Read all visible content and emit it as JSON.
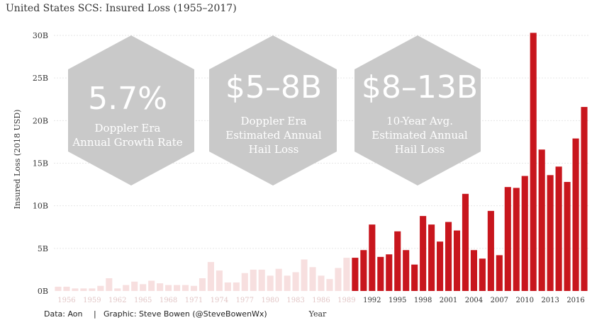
{
  "chart_data": {
    "type": "bar",
    "title": "United States SCS: Insured Loss (1955–2017)",
    "xlabel": "Year",
    "ylabel": "Insured Loss (2018 USD)",
    "ylim": [
      0,
      30
    ],
    "yticks": [
      "0B",
      "5B",
      "10B",
      "15B",
      "20B",
      "25B",
      "30B"
    ],
    "grid": true,
    "years": [
      1955,
      1956,
      1957,
      1958,
      1959,
      1960,
      1961,
      1962,
      1963,
      1964,
      1965,
      1966,
      1967,
      1968,
      1969,
      1970,
      1971,
      1972,
      1973,
      1974,
      1975,
      1976,
      1977,
      1978,
      1979,
      1980,
      1981,
      1982,
      1983,
      1984,
      1985,
      1986,
      1987,
      1988,
      1989,
      1990,
      1991,
      1992,
      1993,
      1994,
      1995,
      1996,
      1997,
      1998,
      1999,
      2000,
      2001,
      2002,
      2003,
      2004,
      2005,
      2006,
      2007,
      2008,
      2009,
      2010,
      2011,
      2012,
      2013,
      2014,
      2015,
      2016,
      2017
    ],
    "values": [
      0.5,
      0.5,
      0.3,
      0.3,
      0.3,
      0.6,
      1.5,
      0.3,
      0.7,
      1.1,
      0.8,
      1.2,
      0.9,
      0.7,
      0.7,
      0.7,
      0.6,
      1.5,
      3.4,
      2.4,
      1.0,
      1.0,
      2.1,
      2.5,
      2.5,
      1.8,
      2.6,
      1.8,
      2.2,
      3.7,
      2.8,
      1.8,
      1.4,
      2.7,
      3.9,
      3.9,
      4.8,
      7.8,
      4.0,
      4.3,
      7.0,
      4.8,
      3.1,
      8.8,
      7.8,
      5.8,
      8.1,
      7.1,
      11.4,
      4.8,
      3.8,
      9.4,
      4.2,
      12.2,
      12.1,
      13.5,
      30.3,
      16.6,
      13.6,
      14.6,
      12.8,
      17.9,
      21.6
    ],
    "x_tick_labels": [
      "1956",
      "1959",
      "1962",
      "1965",
      "1968",
      "1971",
      "1974",
      "1977",
      "1980",
      "1983",
      "1986",
      "1989",
      "1992",
      "1995",
      "1998",
      "2001",
      "2004",
      "2007",
      "2010",
      "2013",
      "2016"
    ],
    "doppler_era_start": 1990,
    "colors": {
      "pre_doppler": "#f7dfdf",
      "doppler": "#c8161d",
      "hexagon": "#c9c9c9"
    }
  },
  "callouts": [
    {
      "big": "5.7%",
      "line1": "Doppler Era",
      "line2": "Annual Growth Rate",
      "line3": ""
    },
    {
      "big": "$5–8B",
      "line1": "Doppler Era",
      "line2": "Estimated Annual",
      "line3": "Hail Loss"
    },
    {
      "big": "$8–13B",
      "line1": "10-Year Avg.",
      "line2": "Estimated Annual",
      "line3": "Hail Loss"
    }
  ],
  "footer": {
    "source": "Data: Aon",
    "separator": "|",
    "credit": "Graphic: Steve Bowen (@SteveBowenWx)"
  }
}
